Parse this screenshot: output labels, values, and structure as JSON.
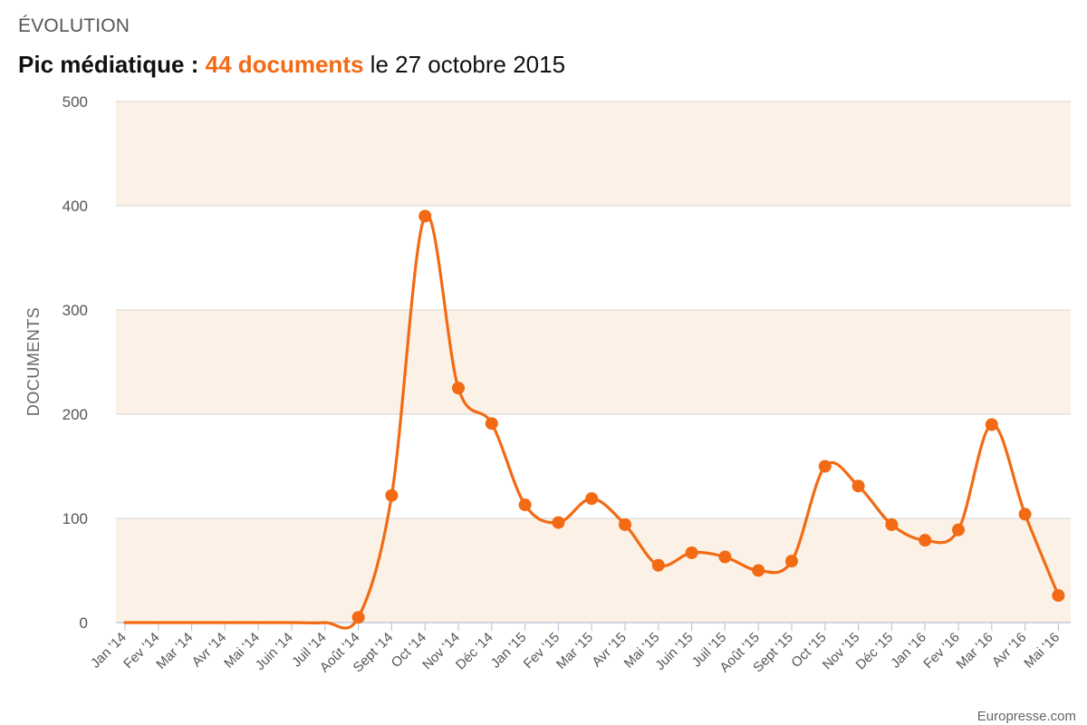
{
  "header": {
    "section_label": "ÉVOLUTION",
    "headline_lead": "Pic médiatique : ",
    "headline_highlight": "44 documents",
    "headline_date": " le 27 octobre 2015"
  },
  "credit": "Europresse.com",
  "colors": {
    "accent": "#f26a13",
    "band": "#fcf1e6",
    "grid": "#d5d5d5",
    "axis": "#c0c8d8",
    "text": "#555555"
  },
  "chart_data": {
    "type": "line",
    "title": "",
    "xlabel": "",
    "ylabel": "DOCUMENTS",
    "ylim": [
      0,
      500
    ],
    "yticks": [
      0,
      100,
      200,
      300,
      400,
      500
    ],
    "grid": true,
    "legend": "none",
    "smooth": true,
    "categories": [
      "Jan '14",
      "Fev '14",
      "Mar '14",
      "Avr '14",
      "Mai '14",
      "Juin '14",
      "Juil '14",
      "Août '14",
      "Sept '14",
      "Oct '14",
      "Nov '14",
      "Déc '14",
      "Jan '15",
      "Fev '15",
      "Mar '15",
      "Avr '15",
      "Mai '15",
      "Juin '15",
      "Juil '15",
      "Août '15",
      "Sept '15",
      "Oct '15",
      "Nov '15",
      "Déc '15",
      "Jan '16",
      "Fev '16",
      "Mar '16",
      "Avr '16",
      "Mai '16"
    ],
    "series": [
      {
        "values": [
          0,
          0,
          0,
          0,
          0,
          0,
          0,
          5,
          122,
          390,
          225,
          191,
          113,
          96,
          119,
          94,
          55,
          67,
          63,
          50,
          59,
          150,
          131,
          94,
          79,
          89,
          190,
          104,
          26
        ],
        "markers_from_index": 7
      }
    ]
  }
}
